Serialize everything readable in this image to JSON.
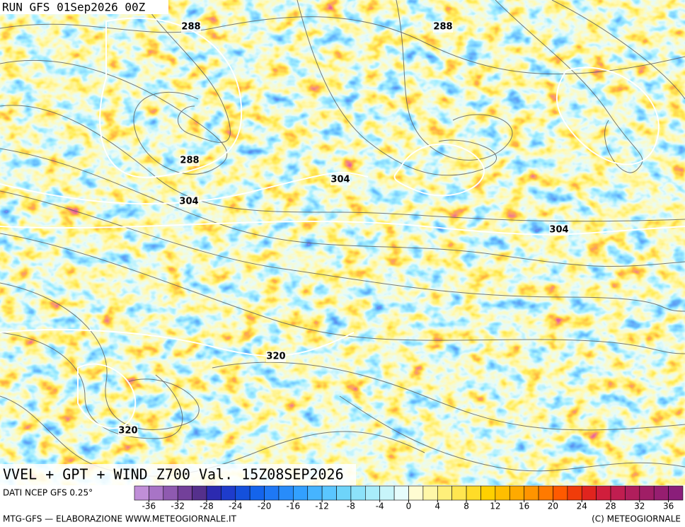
{
  "header": {
    "run": "RUN GFS 01Sep2026 00Z"
  },
  "map": {
    "contour_labels": [
      "288",
      "288",
      "288",
      "304",
      "304",
      "304",
      "320",
      "320"
    ]
  },
  "title": "VVEL + GPT + WIND Z700 Val. 15Z08SEP2026",
  "legend": {
    "source": "DATI NCEP GFS 0.25°",
    "lim": [
      -38,
      38
    ],
    "ticks": [
      -36,
      -32,
      -28,
      -24,
      -20,
      -16,
      -12,
      -8,
      -4,
      0,
      4,
      8,
      12,
      16,
      20,
      24,
      28,
      32,
      36
    ],
    "colors": [
      "#c08fd8",
      "#a874c6",
      "#8f5ab0",
      "#73409a",
      "#55308c",
      "#2c2ab0",
      "#1e3ccc",
      "#1450dc",
      "#1464ec",
      "#1e78f5",
      "#288cfa",
      "#32a0ff",
      "#46b4ff",
      "#5ac6ff",
      "#6ed4fa",
      "#8ce2fa",
      "#a8ecfa",
      "#c8f5fa",
      "#e6fcfc",
      "#fffcd2",
      "#fff7a8",
      "#ffef7a",
      "#ffe650",
      "#ffdc28",
      "#ffd000",
      "#ffbe00",
      "#ffaa00",
      "#ff9400",
      "#ff7a00",
      "#ff5a00",
      "#f03c0a",
      "#e0241e",
      "#d01e3c",
      "#c01e50",
      "#b01e5c",
      "#a01e66",
      "#961e70",
      "#8a1e7a"
    ]
  },
  "footer": {
    "left": "MTG-GFS — ELABORAZIONE WWW.METEOGIORNALE.IT",
    "right": "(C) METEOGIORNALE"
  }
}
